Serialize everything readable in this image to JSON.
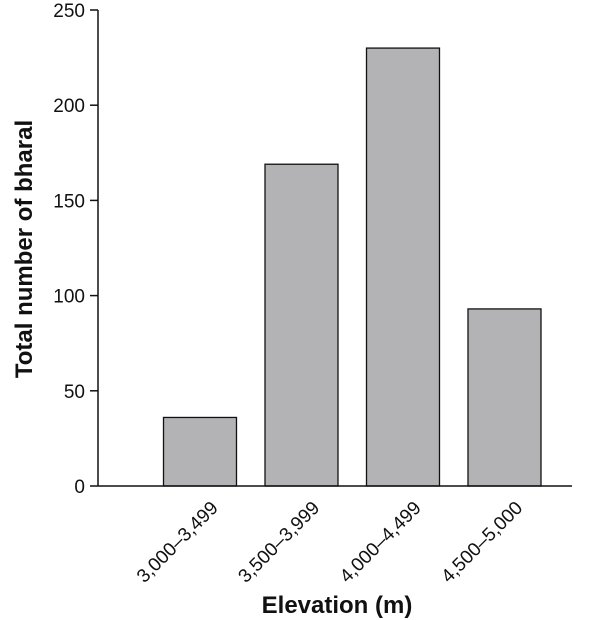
{
  "chart_data": {
    "type": "bar",
    "categories": [
      "3,000–3,499",
      "3,500–3,999",
      "4,000–4,499",
      "4,500–5,000"
    ],
    "values": [
      36,
      169,
      230,
      93
    ],
    "title": "",
    "xlabel": "Elevation (m)",
    "ylabel": "Total number of bharal",
    "ylim": [
      0,
      250
    ],
    "yticks": [
      0,
      50,
      100,
      150,
      200,
      250
    ],
    "grid": false,
    "legend": "none",
    "bar_color": "#b3b3b6",
    "bar_edge_color": "#111111"
  }
}
